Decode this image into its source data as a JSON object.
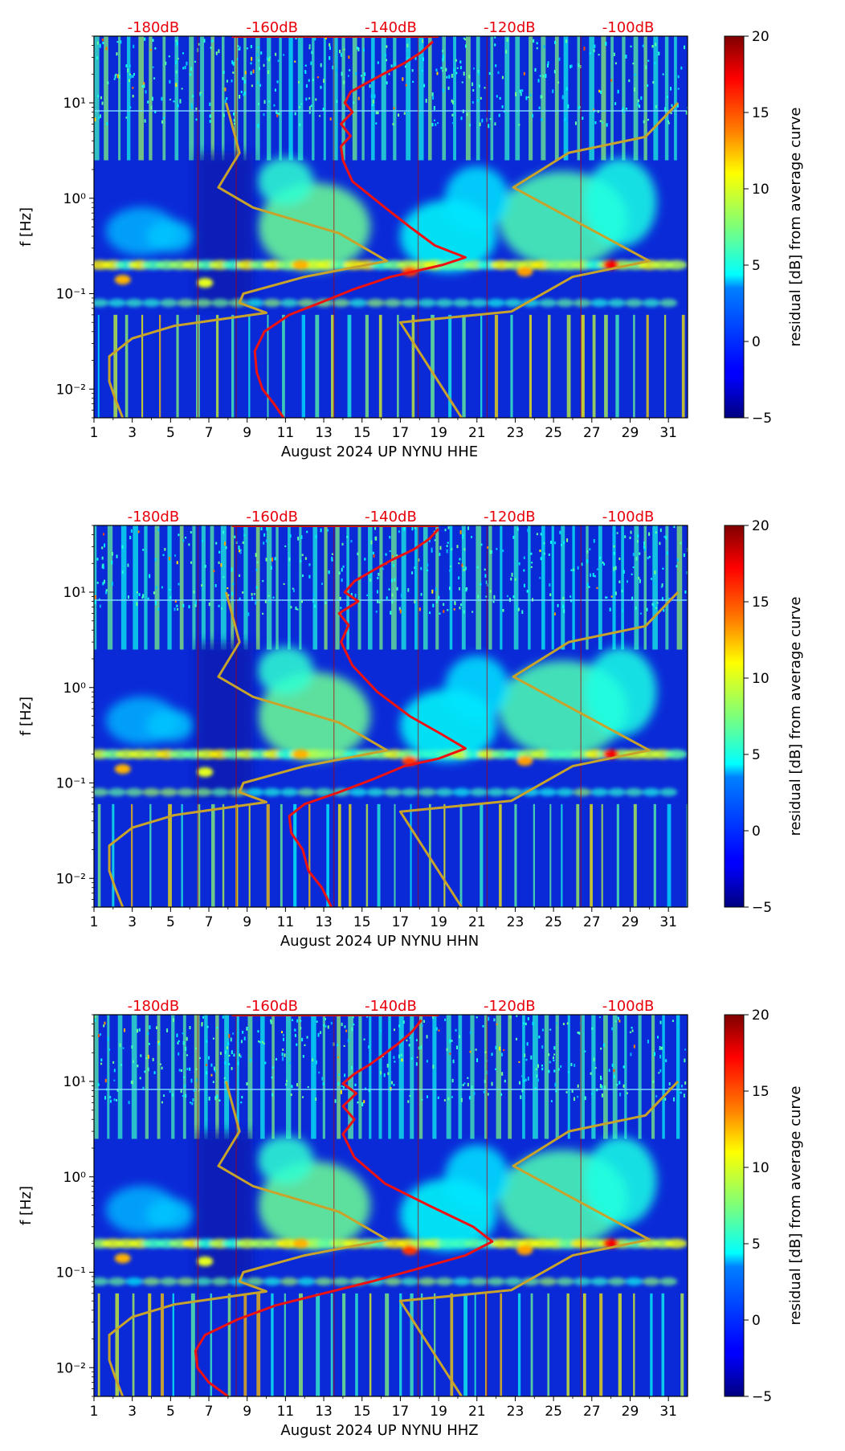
{
  "colors": {
    "noise_curve": "#ee1111",
    "model_curve": "#c8a32c",
    "db_label": "#e8000b"
  },
  "colorbar": {
    "label": "residual [dB] from average curve",
    "min": -5,
    "max": 20,
    "ticks": [
      -5,
      0,
      5,
      10,
      15,
      20
    ],
    "colormap": "jet"
  },
  "chart_data": [
    {
      "type": "heatmap",
      "xlabel": "August 2024 UP NYNU  HHE",
      "ylabel": "f [Hz]",
      "x_range": [
        1,
        32
      ],
      "x_ticks": [
        "1",
        "3",
        "5",
        "7",
        "9",
        "11",
        "13",
        "15",
        "17",
        "19",
        "21",
        "23",
        "25",
        "27",
        "29",
        "31"
      ],
      "y_range": [
        0.005,
        50
      ],
      "y_scale": "log",
      "y_ticks": [
        "10⁻²",
        "10⁻¹",
        "10⁰",
        "10¹"
      ],
      "db_labels": [
        "-180dB",
        "-160dB",
        "-140dB",
        "-120dB",
        "-100dB"
      ],
      "db_range": [
        -190,
        -90
      ],
      "model_curves": [
        {
          "name": "low noise model",
          "points": [
            [
              2.5,
              0.005
            ],
            [
              2.1,
              0.008
            ],
            [
              1.8,
              0.012
            ],
            [
              1.8,
              0.022
            ],
            [
              3.0,
              0.034
            ],
            [
              5.2,
              0.046
            ],
            [
              10.0,
              0.063
            ],
            [
              8.6,
              0.08
            ],
            [
              8.8,
              0.1
            ],
            [
              12.0,
              0.15
            ],
            [
              16.3,
              0.22
            ],
            [
              13.8,
              0.43
            ],
            [
              9.3,
              0.8
            ],
            [
              7.5,
              1.3
            ],
            [
              8.6,
              3.0
            ],
            [
              7.9,
              10.0
            ]
          ]
        },
        {
          "name": "high noise model",
          "points": [
            [
              20.2,
              0.005
            ],
            [
              17.0,
              0.05
            ],
            [
              22.8,
              0.065
            ],
            [
              26.0,
              0.15
            ],
            [
              30.0,
              0.22
            ],
            [
              22.9,
              1.3
            ],
            [
              25.8,
              3.0
            ],
            [
              29.8,
              4.4
            ],
            [
              31.5,
              10.0
            ]
          ]
        }
      ],
      "noise_curve": [
        [
          10.9,
          0.005
        ],
        [
          10.4,
          0.007
        ],
        [
          9.8,
          0.01
        ],
        [
          9.5,
          0.015
        ],
        [
          9.4,
          0.025
        ],
        [
          9.9,
          0.04
        ],
        [
          11.2,
          0.06
        ],
        [
          12.8,
          0.08
        ],
        [
          14.5,
          0.11
        ],
        [
          16.5,
          0.15
        ],
        [
          19.2,
          0.2
        ],
        [
          20.4,
          0.24
        ],
        [
          18.8,
          0.32
        ],
        [
          17.5,
          0.5
        ],
        [
          16.2,
          0.8
        ],
        [
          14.5,
          1.5
        ],
        [
          14.0,
          2.5
        ],
        [
          13.9,
          3.5
        ],
        [
          14.4,
          4.5
        ],
        [
          13.9,
          6.0
        ],
        [
          14.5,
          8.0
        ],
        [
          14.1,
          10.0
        ],
        [
          14.4,
          13.0
        ],
        [
          15.2,
          16.0
        ],
        [
          16.1,
          20.0
        ],
        [
          17.2,
          26.0
        ],
        [
          18.1,
          34.0
        ],
        [
          18.7,
          44.0
        ]
      ]
    },
    {
      "type": "heatmap",
      "xlabel": "August 2024 UP NYNU  HHN",
      "ylabel": "f [Hz]",
      "x_range": [
        1,
        32
      ],
      "x_ticks": [
        "1",
        "3",
        "5",
        "7",
        "9",
        "11",
        "13",
        "15",
        "17",
        "19",
        "21",
        "23",
        "25",
        "27",
        "29",
        "31"
      ],
      "y_range": [
        0.005,
        50
      ],
      "y_scale": "log",
      "y_ticks": [
        "10⁻²",
        "10⁻¹",
        "10⁰",
        "10¹"
      ],
      "db_labels": [
        "-180dB",
        "-160dB",
        "-140dB",
        "-120dB",
        "-100dB"
      ],
      "db_range": [
        -190,
        -90
      ],
      "model_curves": [
        {
          "name": "low noise model",
          "points": [
            [
              2.5,
              0.005
            ],
            [
              2.1,
              0.008
            ],
            [
              1.8,
              0.012
            ],
            [
              1.8,
              0.022
            ],
            [
              3.0,
              0.034
            ],
            [
              5.2,
              0.046
            ],
            [
              10.0,
              0.063
            ],
            [
              8.6,
              0.08
            ],
            [
              8.8,
              0.1
            ],
            [
              12.0,
              0.15
            ],
            [
              16.3,
              0.22
            ],
            [
              13.8,
              0.43
            ],
            [
              9.3,
              0.8
            ],
            [
              7.5,
              1.3
            ],
            [
              8.6,
              3.0
            ],
            [
              7.9,
              10.0
            ]
          ]
        },
        {
          "name": "high noise model",
          "points": [
            [
              20.2,
              0.005
            ],
            [
              17.0,
              0.05
            ],
            [
              22.8,
              0.065
            ],
            [
              26.0,
              0.15
            ],
            [
              30.0,
              0.22
            ],
            [
              22.9,
              1.3
            ],
            [
              25.8,
              3.0
            ],
            [
              29.8,
              4.4
            ],
            [
              31.5,
              10.0
            ]
          ]
        }
      ],
      "noise_curve": [
        [
          13.4,
          0.005
        ],
        [
          12.9,
          0.008
        ],
        [
          12.2,
          0.012
        ],
        [
          11.9,
          0.02
        ],
        [
          11.3,
          0.03
        ],
        [
          11.2,
          0.045
        ],
        [
          12.0,
          0.06
        ],
        [
          13.8,
          0.08
        ],
        [
          15.6,
          0.11
        ],
        [
          17.2,
          0.15
        ],
        [
          19.0,
          0.18
        ],
        [
          20.4,
          0.23
        ],
        [
          19.2,
          0.32
        ],
        [
          17.5,
          0.5
        ],
        [
          15.8,
          0.9
        ],
        [
          14.5,
          1.7
        ],
        [
          13.9,
          3.0
        ],
        [
          14.3,
          4.5
        ],
        [
          13.8,
          6.0
        ],
        [
          14.8,
          8.0
        ],
        [
          14.1,
          10.0
        ],
        [
          14.6,
          13.0
        ],
        [
          15.6,
          17.0
        ],
        [
          16.6,
          22.0
        ],
        [
          17.7,
          28.0
        ],
        [
          18.5,
          36.0
        ],
        [
          19.0,
          46.0
        ]
      ]
    },
    {
      "type": "heatmap",
      "xlabel": "August 2024 UP NYNU  HHZ",
      "ylabel": "f [Hz]",
      "x_range": [
        1,
        32
      ],
      "x_ticks": [
        "1",
        "3",
        "5",
        "7",
        "9",
        "11",
        "13",
        "15",
        "17",
        "19",
        "21",
        "23",
        "25",
        "27",
        "29",
        "31"
      ],
      "y_range": [
        0.005,
        50
      ],
      "y_scale": "log",
      "y_ticks": [
        "10⁻²",
        "10⁻¹",
        "10⁰",
        "10¹"
      ],
      "db_labels": [
        "-180dB",
        "-160dB",
        "-140dB",
        "-120dB",
        "-100dB"
      ],
      "db_range": [
        -190,
        -90
      ],
      "model_curves": [
        {
          "name": "low noise model",
          "points": [
            [
              2.5,
              0.005
            ],
            [
              2.1,
              0.008
            ],
            [
              1.8,
              0.012
            ],
            [
              1.8,
              0.022
            ],
            [
              3.0,
              0.034
            ],
            [
              5.2,
              0.046
            ],
            [
              10.0,
              0.063
            ],
            [
              8.6,
              0.08
            ],
            [
              8.8,
              0.1
            ],
            [
              12.0,
              0.15
            ],
            [
              16.3,
              0.22
            ],
            [
              13.8,
              0.43
            ],
            [
              9.3,
              0.8
            ],
            [
              7.5,
              1.3
            ],
            [
              8.6,
              3.0
            ],
            [
              7.9,
              10.0
            ]
          ]
        },
        {
          "name": "high noise model",
          "points": [
            [
              20.2,
              0.005
            ],
            [
              17.0,
              0.05
            ],
            [
              22.8,
              0.065
            ],
            [
              26.0,
              0.15
            ],
            [
              30.0,
              0.22
            ],
            [
              22.9,
              1.3
            ],
            [
              25.8,
              3.0
            ],
            [
              29.8,
              4.4
            ],
            [
              31.5,
              10.0
            ]
          ]
        }
      ],
      "noise_curve": [
        [
          8.0,
          0.005
        ],
        [
          7.0,
          0.007
        ],
        [
          6.4,
          0.01
        ],
        [
          6.3,
          0.015
        ],
        [
          6.8,
          0.022
        ],
        [
          8.5,
          0.032
        ],
        [
          10.5,
          0.045
        ],
        [
          13.0,
          0.06
        ],
        [
          15.5,
          0.08
        ],
        [
          18.0,
          0.11
        ],
        [
          20.4,
          0.15
        ],
        [
          21.8,
          0.21
        ],
        [
          20.8,
          0.3
        ],
        [
          18.5,
          0.5
        ],
        [
          16.2,
          0.85
        ],
        [
          14.6,
          1.6
        ],
        [
          14.0,
          2.8
        ],
        [
          14.6,
          4.0
        ],
        [
          14.0,
          5.5
        ],
        [
          14.7,
          7.5
        ],
        [
          14.0,
          9.5
        ],
        [
          14.6,
          12.0
        ],
        [
          15.4,
          15.0
        ],
        [
          16.1,
          19.0
        ],
        [
          16.9,
          25.0
        ],
        [
          17.6,
          33.0
        ],
        [
          18.1,
          44.0
        ]
      ]
    }
  ]
}
